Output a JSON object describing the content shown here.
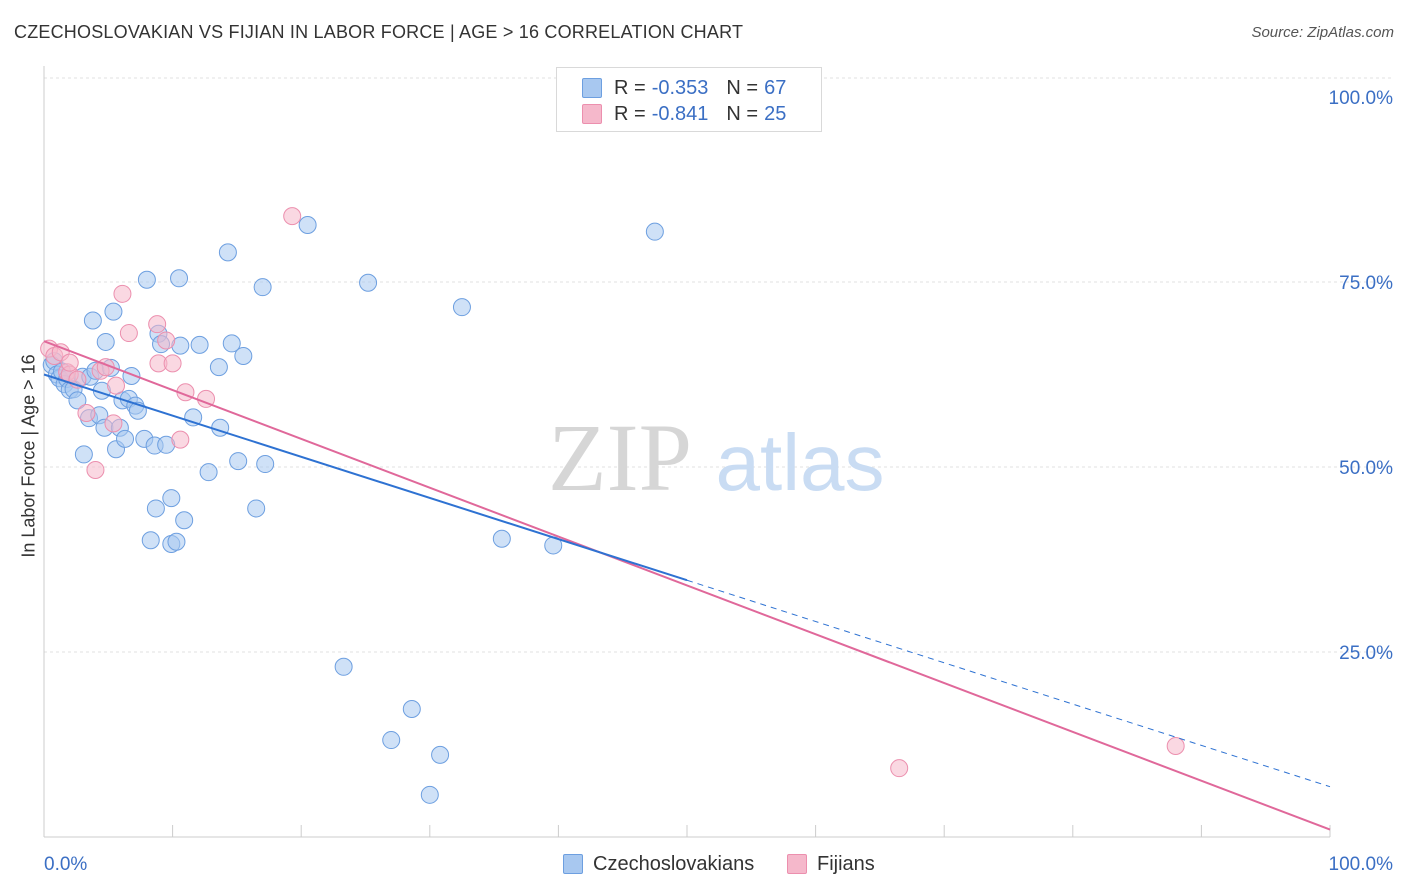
{
  "header": {
    "title": "CZECHOSLOVAKIAN VS FIJIAN IN LABOR FORCE | AGE > 16 CORRELATION CHART",
    "source": "Source: ZipAtlas.com"
  },
  "legend": {
    "rows": [
      {
        "r_label": "R =",
        "r_value": "-0.353",
        "n_label": "N =",
        "n_value": "67",
        "color": "#a8c8f0"
      },
      {
        "r_label": "R =",
        "r_value": "-0.841",
        "n_label": "N =",
        "n_value": "25",
        "color": "#f5b8cb"
      }
    ]
  },
  "watermark": {
    "zip": "ZIP",
    "atlas": "atlas"
  },
  "chart_data": {
    "type": "scatter",
    "title": "CZECHOSLOVAKIAN VS FIJIAN IN LABOR FORCE | AGE > 16 CORRELATION CHART",
    "xlabel": "",
    "ylabel": "In Labor Force | Age > 16",
    "xlim": [
      0,
      100
    ],
    "ylim": [
      0,
      100
    ],
    "x_tick_labels": {
      "left": "0.0%",
      "right": "100.0%"
    },
    "y_ticks": [
      {
        "value": 100,
        "label": "100.0%"
      },
      {
        "value": 75,
        "label": "75.0%"
      },
      {
        "value": 50,
        "label": "50.0%"
      },
      {
        "value": 25,
        "label": "25.0%"
      }
    ],
    "grid": true,
    "series": [
      {
        "name": "Czechoslovakians",
        "color": "#a8c8f0",
        "stroke": "#6d9fe0",
        "line_color": "#2e72d2",
        "trend": {
          "x0": 0,
          "y0": 62.5,
          "x1": 50,
          "y1": 34.7,
          "dash_x1": 100,
          "dash_y1": 6.8
        },
        "points": [
          [
            0.6,
            63.8
          ],
          [
            0.8,
            64.3
          ],
          [
            1.0,
            62.5
          ],
          [
            1.2,
            62.0
          ],
          [
            1.4,
            62.9
          ],
          [
            1.6,
            61.2
          ],
          [
            1.8,
            61.9
          ],
          [
            2.0,
            60.4
          ],
          [
            2.3,
            60.5
          ],
          [
            2.6,
            59.0
          ],
          [
            3.0,
            62.2
          ],
          [
            3.1,
            51.7
          ],
          [
            3.5,
            56.6
          ],
          [
            3.6,
            62.2
          ],
          [
            3.8,
            69.8
          ],
          [
            4.0,
            63.0
          ],
          [
            4.3,
            57.0
          ],
          [
            4.5,
            60.3
          ],
          [
            4.7,
            55.3
          ],
          [
            4.8,
            66.9
          ],
          [
            5.2,
            63.4
          ],
          [
            5.4,
            71.0
          ],
          [
            5.6,
            52.4
          ],
          [
            5.9,
            55.3
          ],
          [
            6.1,
            59.0
          ],
          [
            6.3,
            53.8
          ],
          [
            6.6,
            59.2
          ],
          [
            6.8,
            62.3
          ],
          [
            7.1,
            58.3
          ],
          [
            7.3,
            57.6
          ],
          [
            7.8,
            53.8
          ],
          [
            8.0,
            75.3
          ],
          [
            8.3,
            40.1
          ],
          [
            8.6,
            52.9
          ],
          [
            8.7,
            44.4
          ],
          [
            8.9,
            68.0
          ],
          [
            9.1,
            66.6
          ],
          [
            9.5,
            53.0
          ],
          [
            9.9,
            45.8
          ],
          [
            9.9,
            39.6
          ],
          [
            10.3,
            39.9
          ],
          [
            10.5,
            75.5
          ],
          [
            10.6,
            66.4
          ],
          [
            10.9,
            42.8
          ],
          [
            11.6,
            56.7
          ],
          [
            12.1,
            66.5
          ],
          [
            12.8,
            49.3
          ],
          [
            13.6,
            63.5
          ],
          [
            13.7,
            55.3
          ],
          [
            14.3,
            79.0
          ],
          [
            14.6,
            66.7
          ],
          [
            15.1,
            50.8
          ],
          [
            15.5,
            65.0
          ],
          [
            16.5,
            44.4
          ],
          [
            17.0,
            74.3
          ],
          [
            17.2,
            50.4
          ],
          [
            20.5,
            82.7
          ],
          [
            23.3,
            23.0
          ],
          [
            25.2,
            74.9
          ],
          [
            27.0,
            13.1
          ],
          [
            28.6,
            17.3
          ],
          [
            30.0,
            5.7
          ],
          [
            30.8,
            11.1
          ],
          [
            32.5,
            71.6
          ],
          [
            35.6,
            40.3
          ],
          [
            39.6,
            39.4
          ],
          [
            47.5,
            81.8
          ]
        ]
      },
      {
        "name": "Fijians",
        "color": "#f5b8cb",
        "stroke": "#ec8fae",
        "line_color": "#e0689a",
        "trend": {
          "x0": 0,
          "y0": 67.0,
          "x1": 100,
          "y1": 1.0
        },
        "points": [
          [
            0.4,
            66.0
          ],
          [
            0.8,
            65.0
          ],
          [
            1.3,
            65.5
          ],
          [
            1.8,
            62.8
          ],
          [
            2.0,
            62.5
          ],
          [
            2.0,
            64.1
          ],
          [
            2.6,
            61.8
          ],
          [
            3.3,
            57.3
          ],
          [
            4.0,
            49.6
          ],
          [
            4.4,
            63.0
          ],
          [
            4.8,
            63.5
          ],
          [
            5.4,
            55.9
          ],
          [
            5.6,
            61.0
          ],
          [
            6.1,
            73.4
          ],
          [
            6.6,
            68.1
          ],
          [
            8.8,
            69.3
          ],
          [
            8.9,
            64.0
          ],
          [
            9.5,
            67.1
          ],
          [
            10.0,
            64.0
          ],
          [
            10.6,
            53.7
          ],
          [
            11.0,
            60.1
          ],
          [
            12.6,
            59.2
          ],
          [
            19.3,
            83.9
          ],
          [
            66.5,
            9.3
          ],
          [
            88.0,
            12.3
          ]
        ]
      }
    ]
  }
}
